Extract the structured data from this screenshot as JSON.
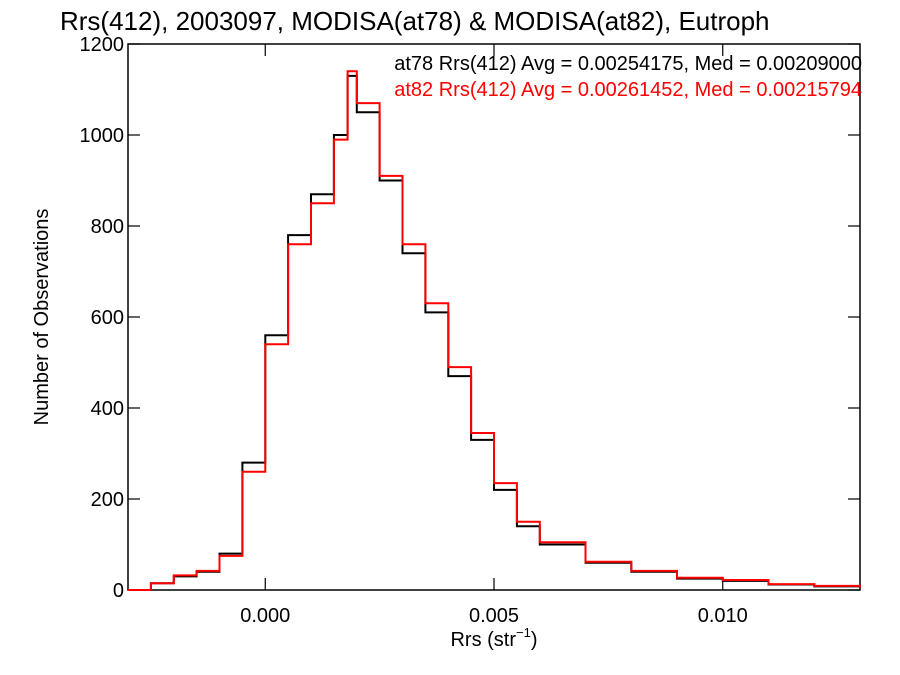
{
  "chart_data": {
    "type": "line",
    "title": "Rrs(412), 2003097, MODISA(at78) & MODISA(at82), Eutroph",
    "xlabel_main": "Rrs (str",
    "xlabel_sup": "−1",
    "xlabel_close": ")",
    "ylabel": "Number of Observations",
    "xlim": [
      -0.003,
      0.013
    ],
    "ylim": [
      0,
      1200
    ],
    "x_ticks": [
      {
        "value": 0.0,
        "label": "0.000"
      },
      {
        "value": 0.005,
        "label": "0.005"
      },
      {
        "value": 0.01,
        "label": "0.010"
      }
    ],
    "y_ticks": [
      {
        "value": 0,
        "label": "0"
      },
      {
        "value": 200,
        "label": "200"
      },
      {
        "value": 400,
        "label": "400"
      },
      {
        "value": 600,
        "label": "600"
      },
      {
        "value": 800,
        "label": "800"
      },
      {
        "value": 1000,
        "label": "1000"
      },
      {
        "value": 1200,
        "label": "1200"
      }
    ],
    "x": [
      -0.003,
      -0.0025,
      -0.002,
      -0.0015,
      -0.001,
      -0.0005,
      0.0,
      0.0005,
      0.001,
      0.0015,
      0.0018,
      0.002,
      0.0025,
      0.003,
      0.0035,
      0.004,
      0.0045,
      0.005,
      0.0055,
      0.006,
      0.007,
      0.008,
      0.009,
      0.01,
      0.011,
      0.012,
      0.013
    ],
    "series": [
      {
        "name": "at78",
        "color": "#000000",
        "stats": "at78 Rrs(412) Avg = 0.00254175, Med = 0.00209000",
        "values": [
          0,
          15,
          30,
          40,
          80,
          280,
          560,
          780,
          870,
          1000,
          1130,
          1050,
          900,
          740,
          610,
          470,
          330,
          220,
          140,
          100,
          60,
          40,
          25,
          20,
          12,
          8,
          5
        ]
      },
      {
        "name": "at82",
        "color": "#ff0000",
        "stats": "at82 Rrs(412) Avg = 0.00261452, Med = 0.00215794",
        "values": [
          0,
          15,
          32,
          42,
          75,
          260,
          540,
          760,
          850,
          990,
          1140,
          1070,
          910,
          760,
          630,
          490,
          345,
          235,
          150,
          105,
          62,
          42,
          27,
          22,
          13,
          9,
          5
        ]
      }
    ]
  }
}
